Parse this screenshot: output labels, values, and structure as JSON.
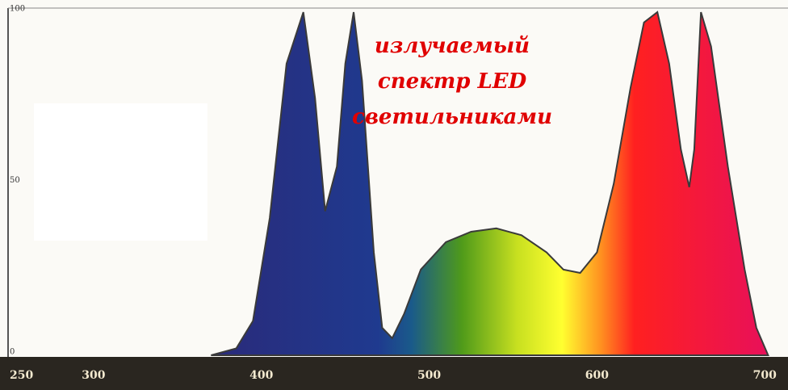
{
  "chart_data": {
    "type": "area",
    "annotation": [
      "излучаемый",
      "спектр LED",
      "светильниками"
    ],
    "x": [
      370,
      385,
      395,
      405,
      415,
      425,
      432,
      438,
      445,
      450,
      455,
      460,
      467,
      472,
      478,
      485,
      495,
      510,
      525,
      540,
      555,
      570,
      580,
      590,
      600,
      610,
      620,
      628,
      636,
      643,
      650,
      655,
      658,
      662,
      668,
      678,
      688,
      695,
      702
    ],
    "values": [
      0,
      2,
      10,
      40,
      85,
      100,
      75,
      42,
      55,
      85,
      100,
      80,
      30,
      8,
      5,
      12,
      25,
      33,
      36,
      37,
      35,
      30,
      25,
      24,
      30,
      50,
      78,
      97,
      100,
      85,
      60,
      49,
      60,
      100,
      90,
      55,
      25,
      8,
      0
    ],
    "xlim": [
      250,
      710
    ],
    "ylim": [
      0,
      100
    ],
    "xticks": [
      250,
      300,
      400,
      500,
      600,
      700
    ],
    "yticks": [
      0,
      50,
      100
    ]
  }
}
